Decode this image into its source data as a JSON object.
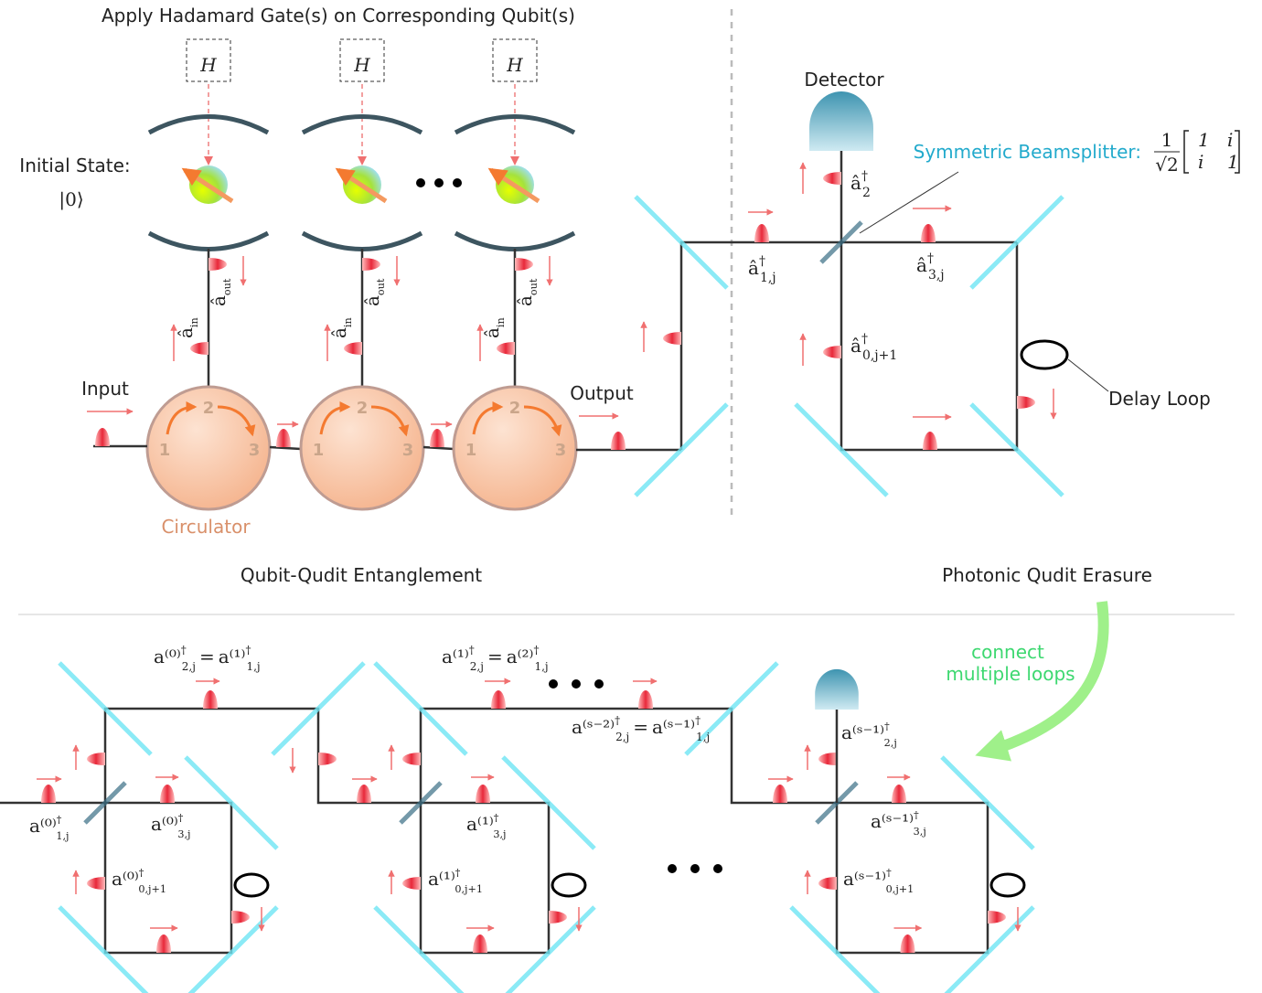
{
  "top": {
    "title": "Apply Hadamard Gate(s) on Corresponding Qubit(s)",
    "gates": [
      "H",
      "H",
      "H"
    ],
    "initial_state": "Initial State:",
    "ket": "|0⟩",
    "a_in": {
      "b": "â",
      "sub": "in"
    },
    "a_out": {
      "b": "â",
      "sub": "out"
    },
    "input": "Input",
    "output": "Output",
    "circulator": "Circulator",
    "ports": [
      "1",
      "2",
      "3"
    ],
    "detector": "Detector",
    "beamsplitter": "Symmetric Beamsplitter:",
    "matrix": {
      "num": "1",
      "den": "√2",
      "rows": [
        [
          "1",
          "i"
        ],
        [
          "i",
          "1"
        ]
      ]
    },
    "a2": {
      "b": "â",
      "sup": "†",
      "sub": "2"
    },
    "a1j": {
      "b": "â",
      "sup": "†",
      "sub": "1,j"
    },
    "a3j": {
      "b": "â",
      "sup": "†",
      "sub": "3,j"
    },
    "a0j1": {
      "b": "â",
      "sup": "†",
      "sub": "0,j+1"
    },
    "delay": "Delay Loop"
  },
  "sections": {
    "left": "Qubit-Qudit Entanglement",
    "right": "Photonic Qudit Erasure"
  },
  "bottom": {
    "connect": [
      "connect",
      "multiple loops"
    ],
    "relation": "=",
    "eq1": [
      {
        "b": "a⁽⁰⁾",
        "sup": "†",
        "sub": "2,j"
      },
      {
        "b": "a⁽¹⁾",
        "sup": "†",
        "sub": "1,j"
      }
    ],
    "eq2": [
      {
        "b": "a⁽¹⁾",
        "sup": "†",
        "sub": "2,j"
      },
      {
        "b": "a⁽²⁾",
        "sup": "†",
        "sub": "1,j"
      }
    ],
    "eq3": [
      {
        "b": "a⁽ˢ⁻²⁾",
        "sup": "†",
        "sub": "2,j"
      },
      {
        "b": "a⁽ˢ⁻¹⁾",
        "sup": "†",
        "sub": "1,j"
      }
    ],
    "u0_1": {
      "b": "a⁽⁰⁾",
      "sup": "†",
      "sub": "1,j"
    },
    "u0_3": {
      "b": "a⁽⁰⁾",
      "sup": "†",
      "sub": "3,j"
    },
    "u0_0": {
      "b": "a⁽⁰⁾",
      "sup": "†",
      "sub": "0,j+1"
    },
    "u1_3": {
      "b": "a⁽¹⁾",
      "sup": "†",
      "sub": "3,j"
    },
    "u1_0": {
      "b": "a⁽¹⁾",
      "sup": "†",
      "sub": "0,j+1"
    },
    "us_2": {
      "b": "a⁽ˢ⁻¹⁾",
      "sup": "†",
      "sub": "2,j"
    },
    "us_3": {
      "b": "a⁽ˢ⁻¹⁾",
      "sup": "†",
      "sub": "3,j"
    },
    "us_0": {
      "b": "a⁽ˢ⁻¹⁾",
      "sup": "†",
      "sub": "0,j+1"
    }
  }
}
